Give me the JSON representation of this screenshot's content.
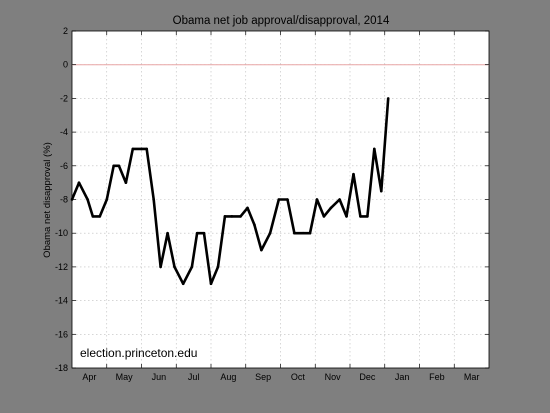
{
  "chart_data": {
    "type": "line",
    "title": "Obama net job approval/disapproval, 2014",
    "xlabel": "",
    "ylabel": "Obama net disapproval (%)",
    "ylim": [
      -18,
      2
    ],
    "yticks": [
      2,
      0,
      -2,
      -4,
      -6,
      -8,
      -10,
      -12,
      -14,
      -16,
      -18
    ],
    "xlim": [
      0,
      12
    ],
    "xtick_labels": [
      "Apr",
      "May",
      "Jun",
      "Jul",
      "Aug",
      "Sep",
      "Oct",
      "Nov",
      "Dec",
      "Jan",
      "Feb",
      "Mar"
    ],
    "grid": true,
    "reference_line": {
      "y": 0,
      "color": "#e8a6a6"
    },
    "annotation": "election.princeton.edu",
    "series": [
      {
        "line_color": "#000000",
        "points": [
          [
            0.0,
            -8
          ],
          [
            0.2,
            -7
          ],
          [
            0.45,
            -8
          ],
          [
            0.6,
            -9
          ],
          [
            0.8,
            -9
          ],
          [
            1.0,
            -8
          ],
          [
            1.2,
            -6
          ],
          [
            1.35,
            -6
          ],
          [
            1.55,
            -7
          ],
          [
            1.75,
            -5
          ],
          [
            2.0,
            -5
          ],
          [
            2.15,
            -5
          ],
          [
            2.35,
            -8
          ],
          [
            2.55,
            -12
          ],
          [
            2.75,
            -10
          ],
          [
            2.95,
            -12
          ],
          [
            3.2,
            -13
          ],
          [
            3.45,
            -12
          ],
          [
            3.6,
            -10
          ],
          [
            3.8,
            -10
          ],
          [
            4.0,
            -13
          ],
          [
            4.2,
            -12
          ],
          [
            4.4,
            -9
          ],
          [
            4.6,
            -9
          ],
          [
            4.85,
            -9
          ],
          [
            5.05,
            -8.5
          ],
          [
            5.25,
            -9.5
          ],
          [
            5.45,
            -11
          ],
          [
            5.7,
            -10
          ],
          [
            5.95,
            -8
          ],
          [
            6.2,
            -8
          ],
          [
            6.4,
            -10
          ],
          [
            6.65,
            -10
          ],
          [
            6.85,
            -10
          ],
          [
            7.05,
            -8
          ],
          [
            7.25,
            -9
          ],
          [
            7.45,
            -8.5
          ],
          [
            7.7,
            -8
          ],
          [
            7.9,
            -9
          ],
          [
            8.1,
            -6.5
          ],
          [
            8.3,
            -9
          ],
          [
            8.5,
            -9
          ],
          [
            8.7,
            -5
          ],
          [
            8.9,
            -7.5
          ],
          [
            9.1,
            -2
          ]
        ]
      }
    ]
  }
}
